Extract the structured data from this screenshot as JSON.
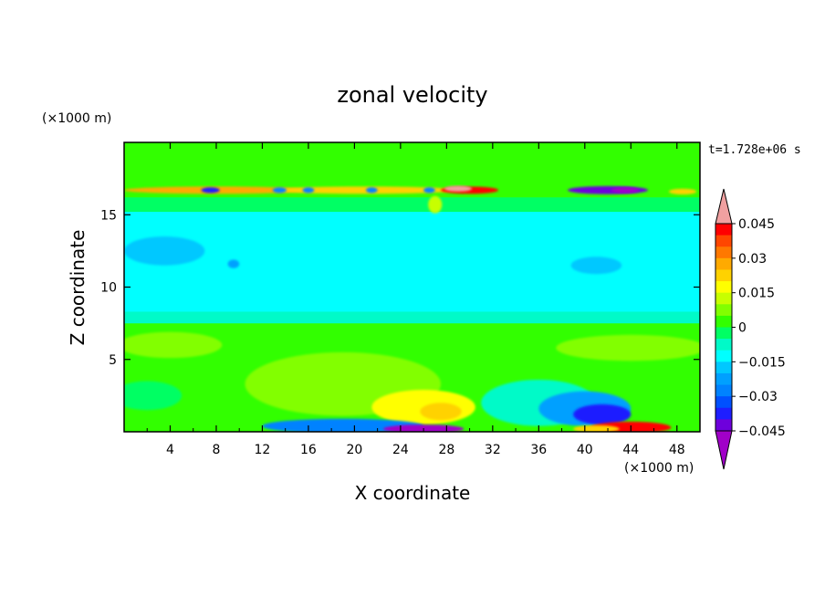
{
  "chart_data": {
    "type": "heatmap",
    "title": "zonal velocity",
    "xlabel": "X coordinate",
    "ylabel": "Z coordinate",
    "x_scale_label": "(×1000 m)",
    "y_scale_label": "(×1000 m)",
    "time_label": "t=1.728e+06 s",
    "xlim": [
      0,
      50
    ],
    "ylim": [
      0,
      20
    ],
    "x_ticks": [
      4,
      8,
      12,
      16,
      20,
      24,
      28,
      32,
      36,
      40,
      44,
      48
    ],
    "y_ticks": [
      5,
      10,
      15
    ],
    "colorbar": {
      "tick_labels": [
        "0.045",
        "0.03",
        "0.015",
        "0",
        "−0.015",
        "−0.03",
        "−0.045"
      ],
      "levels": [
        -0.05,
        -0.045,
        -0.04,
        -0.035,
        -0.03,
        -0.025,
        -0.02,
        -0.015,
        -0.01,
        -0.005,
        0,
        0.005,
        0.01,
        0.015,
        0.02,
        0.025,
        0.03,
        0.035,
        0.04,
        0.045,
        0.05
      ],
      "colors": [
        "#a000c8",
        "#6e00dc",
        "#1e1eff",
        "#0050ff",
        "#0082ff",
        "#00a0ff",
        "#00c8ff",
        "#00ffff",
        "#00fac8",
        "#00ff64",
        "#32ff00",
        "#82ff00",
        "#c8ff00",
        "#ffff00",
        "#ffd200",
        "#ffaa00",
        "#ff7800",
        "#ff4600",
        "#ff0000",
        "#f0a0a0"
      ]
    },
    "field": [
      {
        "shape": "rect",
        "x": [
          0,
          50
        ],
        "z": [
          0,
          20
        ],
        "value": 0.002
      },
      {
        "shape": "rect",
        "x": [
          0,
          50
        ],
        "z": [
          7.5,
          16
        ],
        "value": -0.012
      },
      {
        "shape": "rect",
        "x": [
          0,
          50
        ],
        "z": [
          7.5,
          8.3
        ],
        "value": -0.007
      },
      {
        "shape": "rect",
        "x": [
          0,
          50
        ],
        "z": [
          15.2,
          16.2
        ],
        "value": -0.003
      },
      {
        "shape": "rect",
        "x": [
          0,
          50
        ],
        "z": [
          17.5,
          20
        ],
        "value": 0.004
      },
      {
        "shape": "blob",
        "x": 3.5,
        "z": 12.5,
        "rx": 3.5,
        "rz": 1.0,
        "value": -0.02
      },
      {
        "shape": "blob",
        "x": 9.5,
        "z": 11.6,
        "rx": 0.5,
        "rz": 0.3,
        "value": -0.022
      },
      {
        "shape": "blob",
        "x": 41,
        "z": 11.5,
        "rx": 2.2,
        "rz": 0.6,
        "value": -0.02
      },
      {
        "shape": "blob",
        "x": 4,
        "z": 6.0,
        "rx": 4.5,
        "rz": 0.9,
        "value": 0.006
      },
      {
        "shape": "blob",
        "x": 44,
        "z": 5.8,
        "rx": 6.5,
        "rz": 0.9,
        "value": 0.006
      },
      {
        "shape": "blob",
        "x": 19,
        "z": 3.3,
        "rx": 8.5,
        "rz": 2.2,
        "value": 0.008
      },
      {
        "shape": "blob",
        "x": 26,
        "z": 1.7,
        "rx": 4.5,
        "rz": 1.2,
        "value": 0.016
      },
      {
        "shape": "blob",
        "x": 27.5,
        "z": 1.4,
        "rx": 1.8,
        "rz": 0.6,
        "value": 0.022
      },
      {
        "shape": "blob",
        "x": 36,
        "z": 2.0,
        "rx": 5.0,
        "rz": 1.6,
        "value": -0.01
      },
      {
        "shape": "blob",
        "x": 40,
        "z": 1.6,
        "rx": 4.0,
        "rz": 1.2,
        "value": -0.022
      },
      {
        "shape": "blob",
        "x": 41.5,
        "z": 1.2,
        "rx": 2.5,
        "rz": 0.7,
        "value": -0.038
      },
      {
        "shape": "blob",
        "x": 2,
        "z": 2.5,
        "rx": 3,
        "rz": 1.0,
        "value": -0.005
      },
      {
        "shape": "blob",
        "x": 19,
        "z": 0.4,
        "rx": 7,
        "rz": 0.5,
        "value": -0.03
      },
      {
        "shape": "blob",
        "x": 26,
        "z": 0.2,
        "rx": 3.5,
        "rz": 0.3,
        "value": -0.048
      },
      {
        "shape": "blob",
        "x": 44,
        "z": 0.3,
        "rx": 3.5,
        "rz": 0.4,
        "value": 0.04
      },
      {
        "shape": "blob",
        "x": 41,
        "z": 0.2,
        "rx": 2,
        "rz": 0.25,
        "value": 0.02
      },
      {
        "shape": "blob",
        "x": 8,
        "z": 16.7,
        "rx": 8,
        "rz": 0.25,
        "value": 0.028
      },
      {
        "shape": "blob",
        "x": 21,
        "z": 16.7,
        "rx": 8,
        "rz": 0.25,
        "value": 0.022
      },
      {
        "shape": "blob",
        "x": 30,
        "z": 16.7,
        "rx": 2.5,
        "rz": 0.25,
        "value": 0.04
      },
      {
        "shape": "blob",
        "x": 29,
        "z": 16.8,
        "rx": 1.2,
        "rz": 0.2,
        "value": 0.048
      },
      {
        "shape": "blob",
        "x": 7.5,
        "z": 16.7,
        "rx": 0.8,
        "rz": 0.2,
        "value": -0.04
      },
      {
        "shape": "blob",
        "x": 13.5,
        "z": 16.7,
        "rx": 0.6,
        "rz": 0.2,
        "value": -0.03
      },
      {
        "shape": "blob",
        "x": 16,
        "z": 16.7,
        "rx": 0.5,
        "rz": 0.2,
        "value": -0.03
      },
      {
        "shape": "blob",
        "x": 21.5,
        "z": 16.7,
        "rx": 0.5,
        "rz": 0.2,
        "value": -0.03
      },
      {
        "shape": "blob",
        "x": 26.5,
        "z": 16.7,
        "rx": 0.5,
        "rz": 0.2,
        "value": -0.03
      },
      {
        "shape": "blob",
        "x": 42,
        "z": 16.7,
        "rx": 3.5,
        "rz": 0.28,
        "value": -0.042
      },
      {
        "shape": "blob",
        "x": 43.5,
        "z": 16.7,
        "rx": 1.2,
        "rz": 0.2,
        "value": -0.048
      },
      {
        "shape": "blob",
        "x": 48.5,
        "z": 16.6,
        "rx": 1.2,
        "rz": 0.2,
        "value": 0.02
      },
      {
        "shape": "blob",
        "x": 27,
        "z": 15.7,
        "rx": 0.6,
        "rz": 0.6,
        "value": 0.012
      }
    ]
  }
}
